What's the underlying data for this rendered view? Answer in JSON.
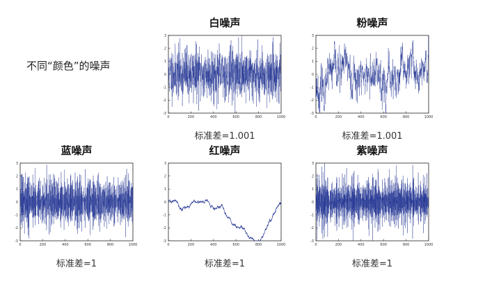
{
  "page": {
    "heading": "不同“颜色”的噪声"
  },
  "colors": {
    "trace": "#1c2f8f",
    "frame": "#222222",
    "title": "#111111"
  },
  "chart_data": [
    {
      "type": "line",
      "id": "white",
      "title": "白噪声",
      "caption": "标准差=1.001",
      "noise": "white",
      "points": 1000,
      "std": 1.001,
      "xlim": [
        0,
        1000
      ],
      "ylim": [
        -3,
        3
      ],
      "xticks": [
        0,
        200,
        400,
        600,
        800,
        1000
      ],
      "yticks": [
        -3,
        -2,
        -1,
        0,
        1,
        2,
        3
      ],
      "xlabel": "",
      "ylabel": ""
    },
    {
      "type": "line",
      "id": "pink",
      "title": "粉噪声",
      "caption": "标准差=1.001",
      "noise": "pink",
      "points": 1000,
      "std": 1.001,
      "xlim": [
        0,
        1000
      ],
      "ylim": [
        -3,
        3
      ],
      "xticks": [
        0,
        200,
        400,
        600,
        800,
        1000
      ],
      "yticks": [
        -3,
        -2,
        -1,
        0,
        1,
        2,
        3
      ],
      "xlabel": "",
      "ylabel": ""
    },
    {
      "type": "line",
      "id": "blue",
      "title": "蓝噪声",
      "caption": "标准差=1",
      "noise": "blue",
      "points": 1000,
      "std": 1,
      "xlim": [
        0,
        1000
      ],
      "ylim": [
        -3,
        3
      ],
      "xticks": [
        0,
        200,
        400,
        600,
        800,
        1000
      ],
      "yticks": [
        -3,
        -2,
        -1,
        0,
        1,
        2,
        3
      ],
      "xlabel": "",
      "ylabel": ""
    },
    {
      "type": "line",
      "id": "red",
      "title": "红噪声",
      "caption": "标准差=1",
      "noise": "red",
      "points": 1000,
      "std": 1,
      "xlim": [
        0,
        1000
      ],
      "ylim": [
        -3,
        3
      ],
      "xticks": [
        0,
        200,
        400,
        600,
        800,
        1000
      ],
      "yticks": [
        -3,
        -2,
        -1,
        0,
        1,
        2,
        3
      ],
      "xlabel": "",
      "ylabel": ""
    },
    {
      "type": "line",
      "id": "violet",
      "title": "紫噪声",
      "caption": "标准差=1",
      "noise": "violet",
      "points": 1000,
      "std": 1,
      "xlim": [
        0,
        1000
      ],
      "ylim": [
        -3,
        3
      ],
      "xticks": [
        0,
        200,
        400,
        600,
        800,
        1000
      ],
      "yticks": [
        -3,
        -2,
        -1,
        0,
        1,
        2,
        3
      ],
      "xlabel": "",
      "ylabel": ""
    }
  ]
}
